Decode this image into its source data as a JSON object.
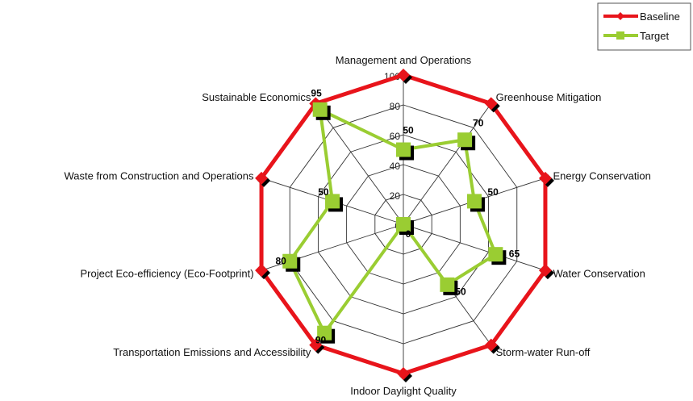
{
  "chart_data": {
    "type": "radar",
    "title": "",
    "categories": [
      "Management and Operations",
      "Greenhouse Mitigation",
      "Energy Conservation",
      "Water Conservation",
      "Storm-water Run-off",
      "Indoor Daylight Quality",
      "Transportation Emissions and Accessibility",
      "Project Eco-efficiency (Eco-Footprint)",
      "Waste from Construction and Operations",
      "Sustainable Economics"
    ],
    "radial_ticks": [
      "0",
      "20",
      "40",
      "60",
      "80",
      "100"
    ],
    "radial_range": [
      0,
      100
    ],
    "grid": true,
    "legend_position": "top-right",
    "series": [
      {
        "name": "Baseline",
        "color": "#e8141b",
        "marker": "diamond",
        "values": [
          100,
          100,
          100,
          100,
          100,
          100,
          100,
          100,
          100,
          100
        ]
      },
      {
        "name": "Target",
        "color": "#9acd32",
        "marker": "square",
        "values": [
          50,
          70,
          50,
          65,
          50,
          0,
          90,
          80,
          50,
          95
        ],
        "labels": [
          "50",
          "70",
          "50",
          "65",
          "50",
          "0",
          "90",
          "80",
          "50",
          "95"
        ]
      }
    ]
  }
}
